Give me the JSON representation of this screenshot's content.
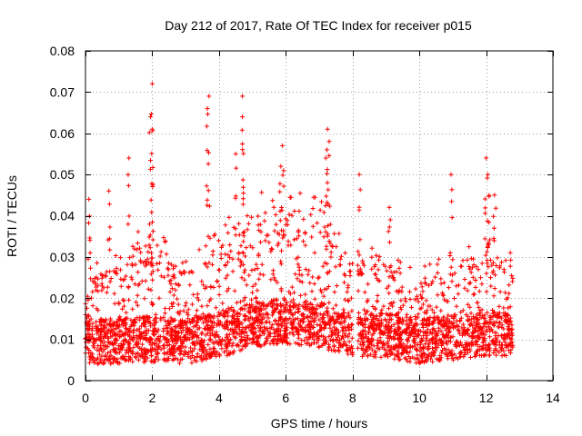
{
  "chart_data": {
    "type": "scatter",
    "title": "Day 212 of 2017, Rate Of TEC Index for receiver p015",
    "xlabel": "GPS time / hours",
    "ylabel": "ROTI / TECUs",
    "xlim": [
      0,
      14
    ],
    "ylim": [
      0,
      0.08
    ],
    "x_ticks": [
      0,
      2,
      4,
      6,
      8,
      10,
      12,
      14
    ],
    "y_ticks": [
      0,
      0.01,
      0.02,
      0.03,
      0.04,
      0.05,
      0.06,
      0.07,
      0.08
    ],
    "x_tick_labels": [
      "0",
      "2",
      "4",
      "6",
      "8",
      "10",
      "12",
      "14"
    ],
    "y_tick_labels": [
      "0",
      "0.01",
      "0.02",
      "0.03",
      "0.04",
      "0.05",
      "0.06",
      "0.07",
      "0.08"
    ],
    "grid": true,
    "marker": "+",
    "color": "#ff0000",
    "data_x_range": [
      0.0,
      12.8
    ],
    "peaks": [
      {
        "x": 2.0,
        "y": 0.072
      },
      {
        "x": 1.95,
        "y": 0.064
      },
      {
        "x": 2.0,
        "y": 0.061
      },
      {
        "x": 1.3,
        "y": 0.054
      },
      {
        "x": 3.7,
        "y": 0.069
      },
      {
        "x": 3.65,
        "y": 0.066
      },
      {
        "x": 4.7,
        "y": 0.069
      },
      {
        "x": 4.7,
        "y": 0.064
      },
      {
        "x": 4.5,
        "y": 0.055
      },
      {
        "x": 5.9,
        "y": 0.057
      },
      {
        "x": 5.85,
        "y": 0.052
      },
      {
        "x": 7.25,
        "y": 0.061
      },
      {
        "x": 7.3,
        "y": 0.058
      },
      {
        "x": 7.2,
        "y": 0.054
      },
      {
        "x": 8.2,
        "y": 0.05
      },
      {
        "x": 10.95,
        "y": 0.05
      },
      {
        "x": 12.0,
        "y": 0.054
      },
      {
        "x": 12.05,
        "y": 0.05
      },
      {
        "x": 0.1,
        "y": 0.044
      },
      {
        "x": 0.7,
        "y": 0.046
      },
      {
        "x": 9.1,
        "y": 0.042
      },
      {
        "x": 12.25,
        "y": 0.045
      }
    ],
    "envelope": [
      {
        "x": 0.0,
        "base": 0.0095,
        "upper": 0.025
      },
      {
        "x": 1.0,
        "base": 0.0095,
        "upper": 0.028
      },
      {
        "x": 2.0,
        "base": 0.01,
        "upper": 0.035
      },
      {
        "x": 3.0,
        "base": 0.0095,
        "upper": 0.026
      },
      {
        "x": 4.0,
        "base": 0.011,
        "upper": 0.033
      },
      {
        "x": 5.0,
        "base": 0.0135,
        "upper": 0.04
      },
      {
        "x": 6.0,
        "base": 0.0145,
        "upper": 0.042
      },
      {
        "x": 7.0,
        "base": 0.0135,
        "upper": 0.04
      },
      {
        "x": 8.0,
        "base": 0.0115,
        "upper": 0.03
      },
      {
        "x": 9.0,
        "base": 0.011,
        "upper": 0.028
      },
      {
        "x": 10.0,
        "base": 0.0095,
        "upper": 0.024
      },
      {
        "x": 11.0,
        "base": 0.0105,
        "upper": 0.029
      },
      {
        "x": 12.0,
        "base": 0.0115,
        "upper": 0.033
      },
      {
        "x": 12.8,
        "base": 0.011,
        "upper": 0.028
      }
    ],
    "gap": [
      8.0,
      8.15
    ]
  }
}
